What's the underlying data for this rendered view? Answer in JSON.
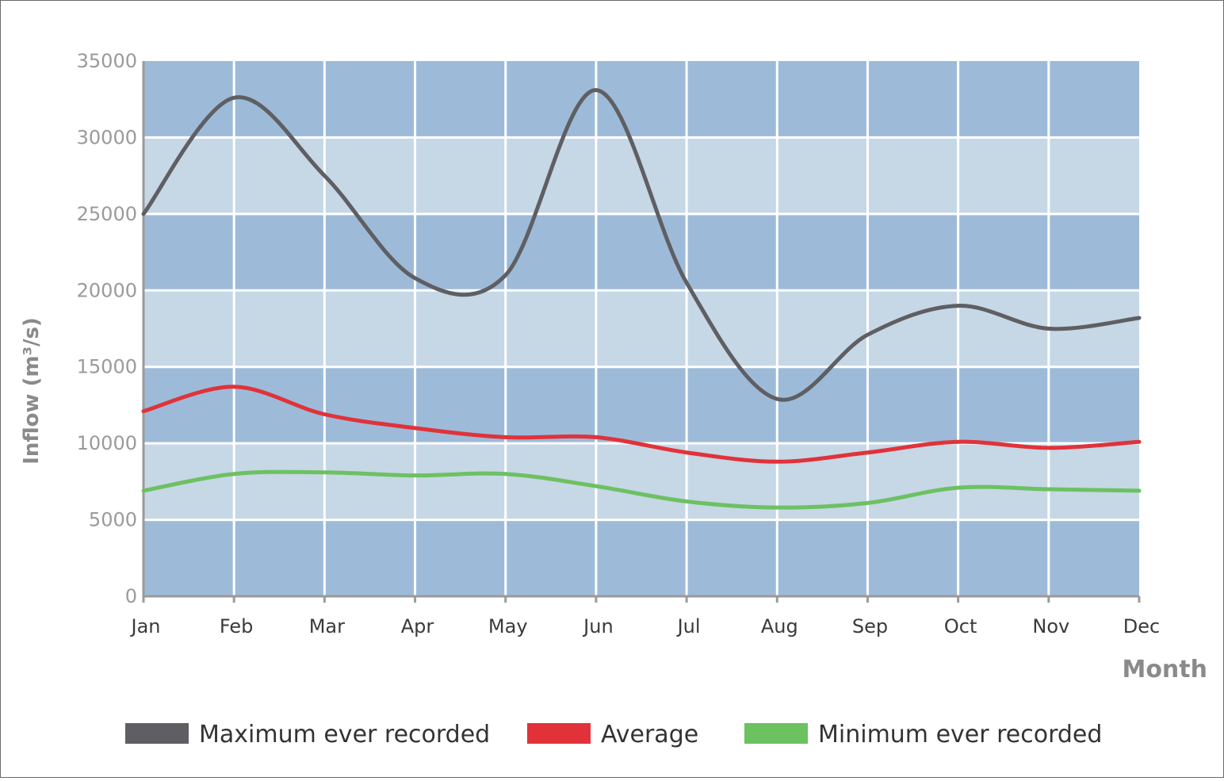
{
  "colors": {
    "band_dark": "#9dbbd9",
    "band_light": "#c6d7e6",
    "grid": "#ffffff",
    "max": "#5f5f63",
    "avg": "#e1323a",
    "min": "#6cc161",
    "axis_text": "#9a9a9a",
    "tick_text": "#3a3a3a"
  },
  "chart_data": {
    "type": "line",
    "xlabel": "Month",
    "ylabel": "Inflow (m³/s)",
    "ylim": [
      0,
      35000
    ],
    "yticks": [
      "0",
      "5000",
      "10000",
      "15000",
      "20000",
      "25000",
      "30000",
      "35000"
    ],
    "categories": [
      "Jan",
      "Feb",
      "Mar",
      "Apr",
      "May",
      "Jun",
      "Jul",
      "Aug",
      "Sep",
      "Oct",
      "Nov",
      "Dec"
    ],
    "grid": true,
    "legend_position": "bottom",
    "series": [
      {
        "name": "Maximum ever recorded",
        "color_key": "max",
        "values": [
          25000,
          32600,
          27500,
          20800,
          21000,
          33100,
          20500,
          12900,
          17100,
          19000,
          17500,
          18200
        ]
      },
      {
        "name": "Average",
        "color_key": "avg",
        "values": [
          12100,
          13700,
          11900,
          11000,
          10400,
          10400,
          9400,
          8800,
          9400,
          10100,
          9700,
          10100
        ]
      },
      {
        "name": "Minimum ever recorded",
        "color_key": "min",
        "values": [
          6900,
          8000,
          8100,
          7900,
          8000,
          7200,
          6200,
          5800,
          6100,
          7100,
          7000,
          6900
        ]
      }
    ]
  }
}
